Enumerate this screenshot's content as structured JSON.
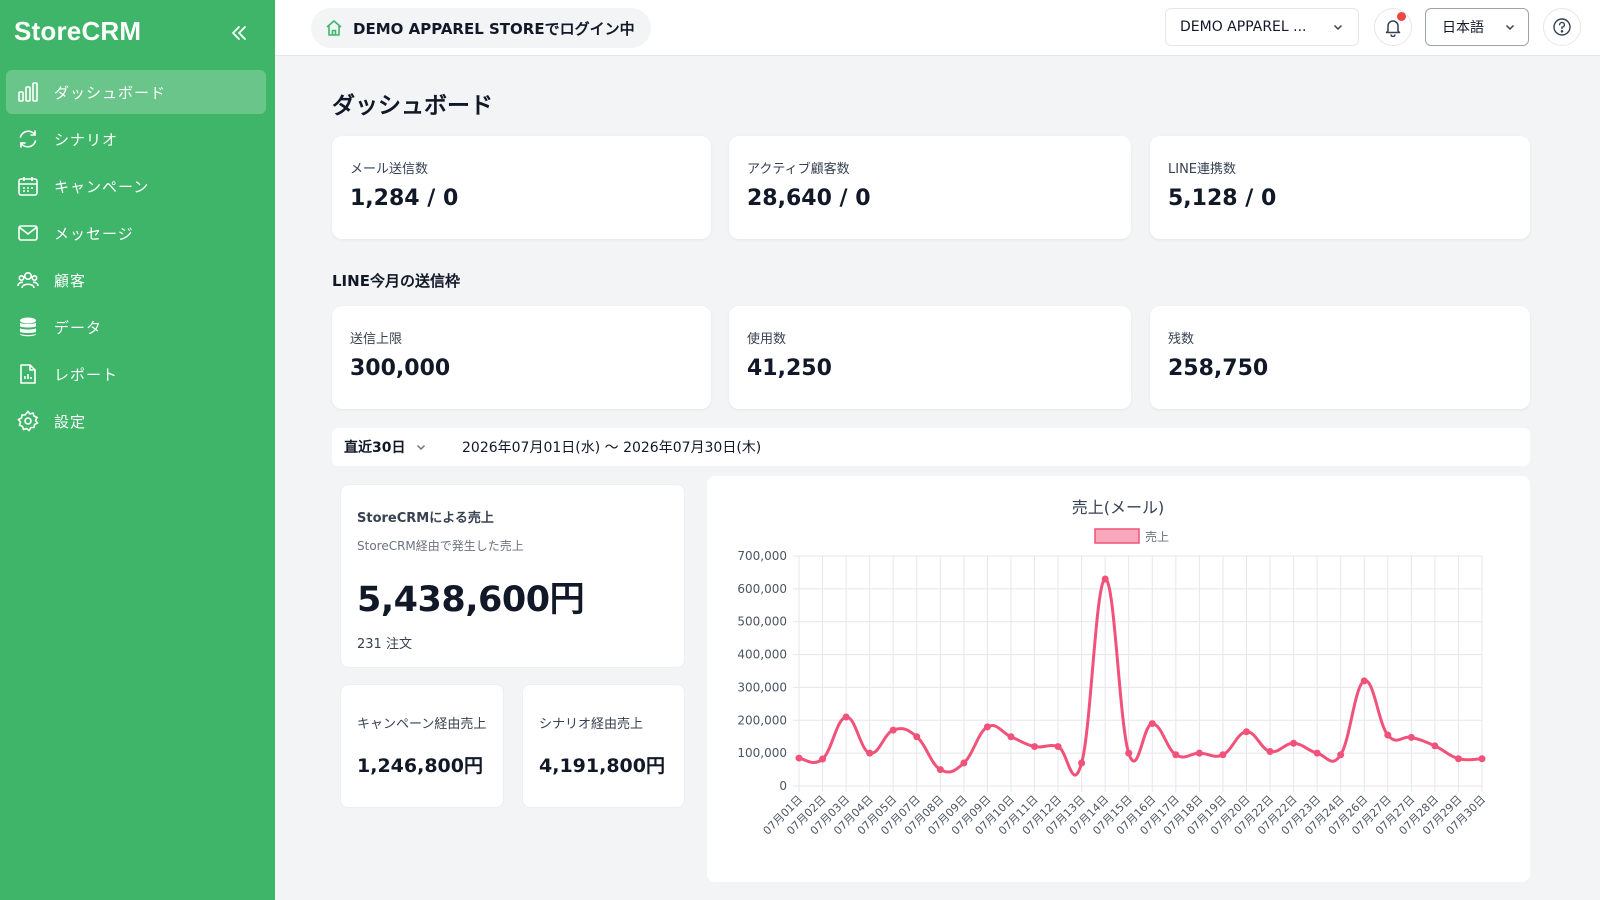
{
  "app": {
    "brand": "StoreCRM"
  },
  "sidebar": {
    "items": [
      {
        "label": "ダッシュボード",
        "icon": "bar-chart-icon"
      },
      {
        "label": "シナリオ",
        "icon": "refresh-icon"
      },
      {
        "label": "キャンペーン",
        "icon": "calendar-icon"
      },
      {
        "label": "メッセージ",
        "icon": "mail-icon"
      },
      {
        "label": "顧客",
        "icon": "users-icon"
      },
      {
        "label": "データ",
        "icon": "database-icon"
      },
      {
        "label": "レポート",
        "icon": "file-report-icon"
      },
      {
        "label": "設定",
        "icon": "gear-icon"
      }
    ]
  },
  "header": {
    "login_status": "DEMO APPAREL STOREでログイン中",
    "store_select": "DEMO APPAREL ...",
    "language": "日本語"
  },
  "page": {
    "title": "ダッシュボード",
    "stats": [
      {
        "label": "メール送信数",
        "value": "1,284 / 0"
      },
      {
        "label": "アクティブ顧客数",
        "value": "28,640 / 0"
      },
      {
        "label": "LINE連携数",
        "value": "5,128 / 0"
      }
    ],
    "line_section_title": "LINE今月の送信枠",
    "line_stats": [
      {
        "label": "送信上限",
        "value": "300,000"
      },
      {
        "label": "使用数",
        "value": "41,250"
      },
      {
        "label": "残数",
        "value": "258,750"
      }
    ],
    "range": {
      "select": "直近30日",
      "text": "2026年07月01日(水) 〜 2026年07月30日(木)"
    },
    "sales": {
      "title": "StoreCRMによる売上",
      "subtitle": "StoreCRM経由で発生した売上",
      "amount": "5,438,600円",
      "orders": "231 注文",
      "campaign_label": "キャンペーン経由売上",
      "campaign_value": "1,246,800円",
      "scenario_label": "シナリオ経由売上",
      "scenario_value": "4,191,800円"
    }
  },
  "colors": {
    "sidebar": "#3fb56a",
    "series": "#f0527a"
  },
  "chart_data": {
    "type": "line",
    "title": "売上(メール)",
    "xlabel": "",
    "ylabel": "",
    "legend": "top",
    "grid": true,
    "ylim": [
      0,
      700000
    ],
    "yticks": [
      "0",
      "100,000",
      "200,000",
      "300,000",
      "400,000",
      "500,000",
      "600,000",
      "700,000"
    ],
    "categories": [
      "07月01日",
      "07月02日",
      "07月03日",
      "07月04日",
      "07月05日",
      "07月07日",
      "07月08日",
      "07月09日",
      "07月09日",
      "07月10日",
      "07月11日",
      "07月12日",
      "07月13日",
      "07月14日",
      "07月15日",
      "07月16日",
      "07月17日",
      "07月18日",
      "07月19日",
      "07月20日",
      "07月22日",
      "07月22日",
      "07月23日",
      "07月24日",
      "07月26日",
      "07月27日",
      "07月27日",
      "07月28日",
      "07月29日",
      "07月30日"
    ],
    "series": [
      {
        "name": "売上",
        "color": "#f0527a",
        "values": [
          85000,
          82000,
          210000,
          100000,
          170000,
          150000,
          50000,
          70000,
          180000,
          150000,
          120000,
          120000,
          70000,
          630000,
          100000,
          190000,
          95000,
          100000,
          95000,
          165000,
          105000,
          130000,
          100000,
          95000,
          320000,
          155000,
          148000,
          122000,
          83000,
          83000
        ]
      }
    ]
  }
}
